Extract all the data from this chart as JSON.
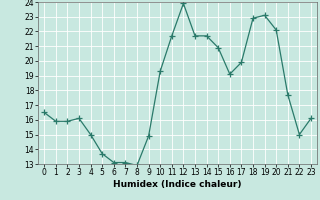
{
  "x": [
    0,
    1,
    2,
    3,
    4,
    5,
    6,
    7,
    8,
    9,
    10,
    11,
    12,
    13,
    14,
    15,
    16,
    17,
    18,
    19,
    20,
    21,
    22,
    23
  ],
  "y": [
    16.5,
    15.9,
    15.9,
    16.1,
    15.0,
    13.7,
    13.1,
    13.1,
    12.9,
    14.9,
    19.3,
    21.7,
    23.9,
    21.7,
    21.7,
    20.9,
    19.1,
    19.9,
    22.9,
    23.1,
    22.1,
    17.7,
    15.0,
    16.1
  ],
  "line_color": "#2a7a6a",
  "marker": "+",
  "marker_size": 4,
  "bg_color": "#c8e8e0",
  "grid_color": "#ffffff",
  "xlabel": "Humidex (Indice chaleur)",
  "xlim": [
    -0.5,
    23.5
  ],
  "ylim": [
    13,
    24
  ],
  "yticks": [
    13,
    14,
    15,
    16,
    17,
    18,
    19,
    20,
    21,
    22,
    23,
    24
  ],
  "xticks": [
    0,
    1,
    2,
    3,
    4,
    5,
    6,
    7,
    8,
    9,
    10,
    11,
    12,
    13,
    14,
    15,
    16,
    17,
    18,
    19,
    20,
    21,
    22,
    23
  ],
  "label_fontsize": 6.5,
  "tick_fontsize": 5.5
}
